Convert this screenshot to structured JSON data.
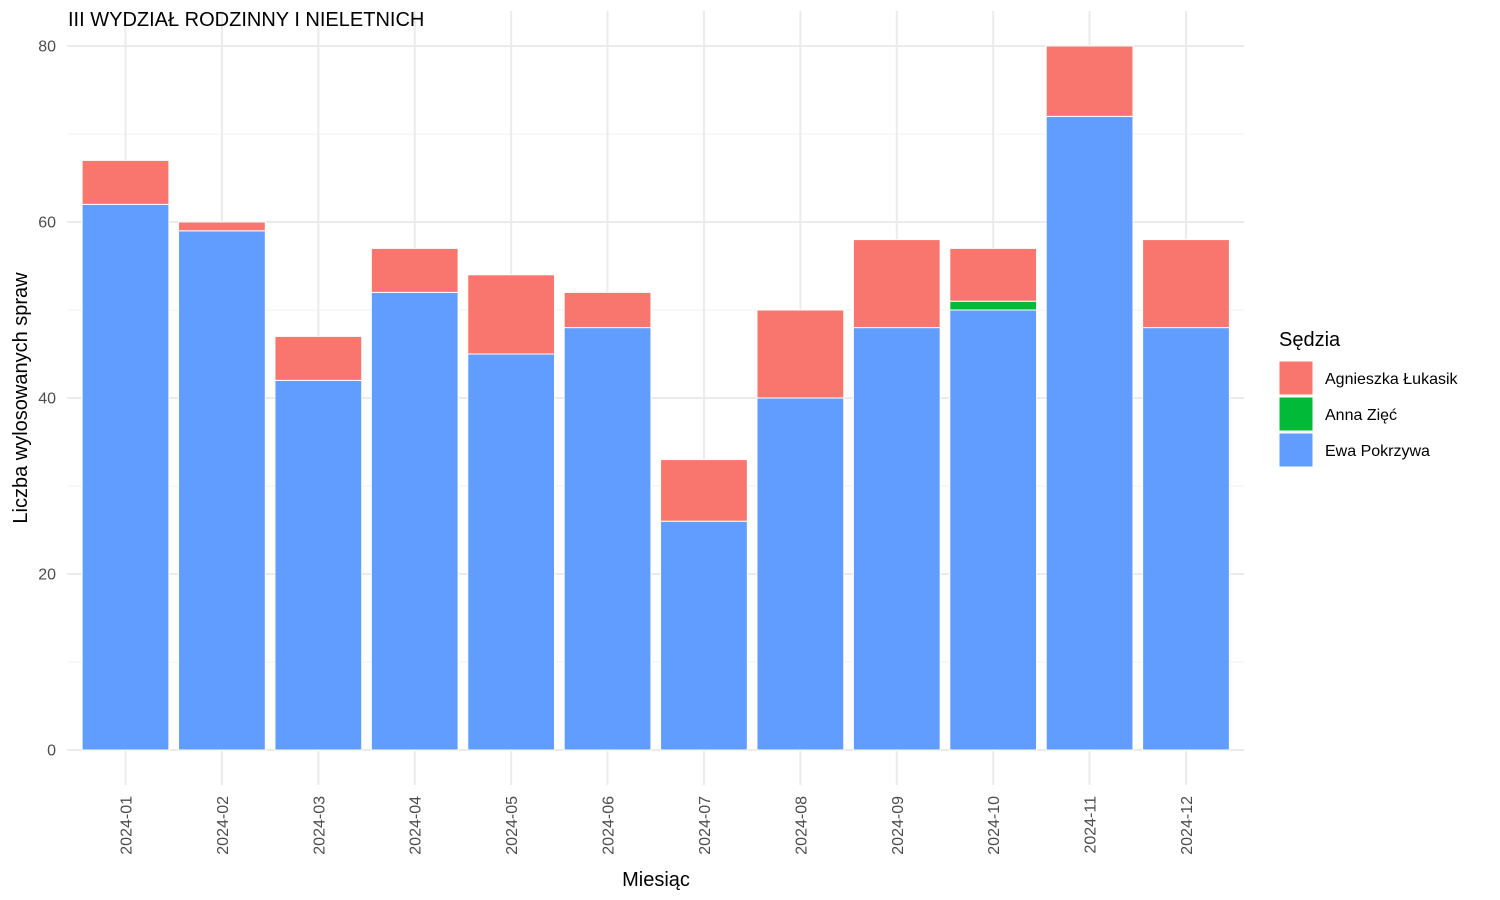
{
  "chart_data": {
    "type": "bar",
    "stacked": true,
    "title": "III WYDZIAŁ RODZINNY I NIELETNICH",
    "xlabel": "Miesiąc",
    "ylabel": "Liczba wylosowanych spraw",
    "ylim": [
      0,
      80
    ],
    "yticks": [
      "0",
      "20",
      "40",
      "60",
      "80"
    ],
    "grid": true,
    "categories": [
      "2024-01",
      "2024-02",
      "2024-03",
      "2024-04",
      "2024-05",
      "2024-06",
      "2024-07",
      "2024-08",
      "2024-09",
      "2024-10",
      "2024-11",
      "2024-12"
    ],
    "series": [
      {
        "name": "Ewa Pokrzywa",
        "color": "#619CFF",
        "values": [
          62,
          59,
          42,
          52,
          45,
          48,
          26,
          40,
          48,
          50,
          72,
          48
        ]
      },
      {
        "name": "Anna Zięć",
        "color": "#00BA38",
        "values": [
          0,
          0,
          0,
          0,
          0,
          0,
          0,
          0,
          0,
          1,
          0,
          0
        ]
      },
      {
        "name": "Agnieszka Łukasik",
        "color": "#F8766D",
        "values": [
          5,
          1,
          5,
          5,
          9,
          4,
          7,
          10,
          10,
          6,
          8,
          10
        ]
      }
    ],
    "legend": {
      "title": "Sędzia",
      "position": "right",
      "order": [
        "Agnieszka Łukasik",
        "Anna Zięć",
        "Ewa Pokrzywa"
      ]
    }
  }
}
